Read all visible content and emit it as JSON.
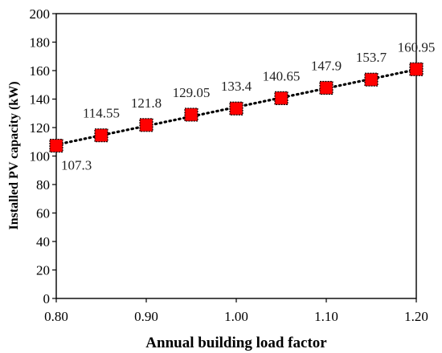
{
  "chart_data": {
    "type": "scatter",
    "x": [
      0.8,
      0.85,
      0.9,
      0.95,
      1.0,
      1.05,
      1.1,
      1.15,
      1.2
    ],
    "y": [
      107.3,
      114.55,
      121.8,
      129.05,
      133.4,
      140.65,
      147.9,
      153.7,
      160.95
    ],
    "data_labels": [
      "107.3",
      "114.55",
      "121.8",
      "129.05",
      "133.4",
      "140.65",
      "147.9",
      "153.7",
      "160.95"
    ],
    "xlabel": "Annual building load factor",
    "ylabel": "Installed PV capacity (kW)",
    "xlim": [
      0.8,
      1.2
    ],
    "ylim": [
      0,
      200
    ],
    "x_ticks": [
      "0.80",
      "0.90",
      "1.00",
      "1.10",
      "1.20"
    ],
    "y_ticks": [
      "0",
      "20",
      "40",
      "60",
      "80",
      "100",
      "120",
      "140",
      "160",
      "180",
      "200"
    ],
    "grid": false,
    "legend": "none",
    "trendline": "linear, dotted",
    "marker": "square",
    "marker_color": "#ff0000",
    "marker_edge_color": "#000000",
    "trendline_color": "#000000"
  }
}
